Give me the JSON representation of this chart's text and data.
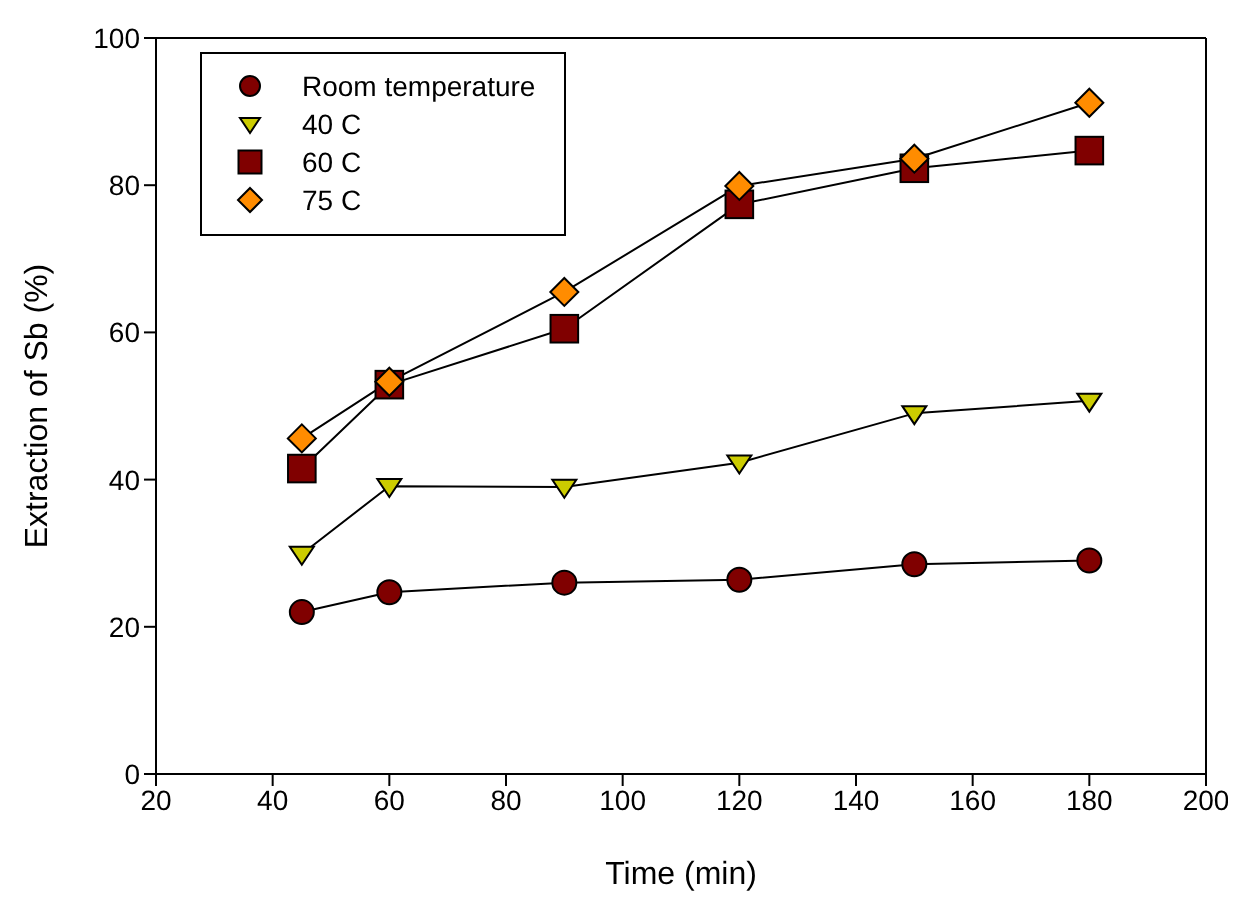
{
  "chart_data": {
    "type": "line",
    "xlabel": "Time (min)",
    "ylabel": "Extraction of Sb (%)",
    "x": [
      45,
      60,
      90,
      120,
      150,
      180
    ],
    "xlim": [
      20,
      200
    ],
    "xticks": [
      20,
      40,
      60,
      80,
      100,
      120,
      140,
      160,
      180,
      200
    ],
    "ylim": [
      0,
      100
    ],
    "yticks": [
      0,
      20,
      40,
      60,
      80,
      100
    ],
    "grid": false,
    "legend": "top left",
    "series": [
      {
        "name": "Room temperature",
        "color": "#800000",
        "marker": "circle",
        "values": [
          22.0,
          24.7,
          26.0,
          26.4,
          28.5,
          29.0
        ]
      },
      {
        "name": "40 C",
        "color": "#cccc00",
        "marker": "triangle",
        "values": [
          29.9,
          39.1,
          39.0,
          42.3,
          49.0,
          50.7
        ]
      },
      {
        "name": "60 C",
        "color": "#800000",
        "marker": "square",
        "values": [
          41.5,
          52.9,
          60.5,
          77.4,
          82.3,
          84.7
        ]
      },
      {
        "name": "75 C",
        "color": "#ff8c00",
        "marker": "diamond",
        "values": [
          45.6,
          53.3,
          65.5,
          79.9,
          83.6,
          91.2
        ]
      }
    ]
  }
}
